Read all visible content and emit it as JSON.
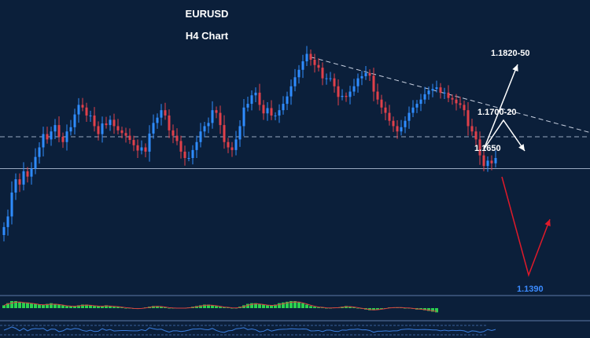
{
  "chart_data": {
    "type": "candlestick",
    "title": "EURUSD",
    "subtitle": "H4 Chart",
    "ylim": [
      1.136,
      1.19
    ],
    "colors": {
      "background": "#0b1f3a",
      "bull": "#2f8cff",
      "bear": "#e0404a",
      "annotation_white": "#ffffff",
      "annotation_red": "#e01a2a",
      "target_text": "#3b8bff",
      "macd_hist": "#2bd14f",
      "macd_signal": "#d94040"
    },
    "levels": [
      {
        "label": "1.1820-50",
        "value": 1.1835,
        "kind": "resistance"
      },
      {
        "label": "1.1700-20",
        "value": 1.171,
        "kind": "resistance"
      },
      {
        "label": "1.1650",
        "value": 1.165,
        "kind": "resistance"
      },
      {
        "label": "1.1390",
        "value": 1.139,
        "kind": "target"
      }
    ],
    "horizontal_lines": [
      {
        "value": 1.165,
        "style": "dashed"
      },
      {
        "value": 1.159,
        "style": "solid"
      }
    ],
    "trendline": {
      "style": "dashed",
      "from": {
        "bar": 78,
        "price": 1.18
      },
      "to": {
        "bar": 148,
        "price": 1.166
      }
    },
    "closes": [
      1.148,
      1.15,
      1.1545,
      1.157,
      1.156,
      1.1585,
      1.1575,
      1.159,
      1.1612,
      1.163,
      1.1655,
      1.1645,
      1.166,
      1.1672,
      1.165,
      1.164,
      1.166,
      1.1668,
      1.1692,
      1.171,
      1.1705,
      1.169,
      1.169,
      1.167,
      1.1655,
      1.1675,
      1.1672,
      1.1682,
      1.167,
      1.1662,
      1.1657,
      1.1652,
      1.1644,
      1.1634,
      1.1624,
      1.163,
      1.1622,
      1.1656,
      1.1676,
      1.1686,
      1.17,
      1.169,
      1.1662,
      1.1652,
      1.1642,
      1.1622,
      1.161,
      1.161,
      1.1625,
      1.164,
      1.166,
      1.167,
      1.1676,
      1.17,
      1.1695,
      1.1672,
      1.164,
      1.163,
      1.1625,
      1.1645,
      1.167,
      1.1705,
      1.1712,
      1.1728,
      1.1733,
      1.171,
      1.1694,
      1.1704,
      1.169,
      1.169,
      1.17,
      1.1712,
      1.1726,
      1.1745,
      1.1762,
      1.1776,
      1.1792,
      1.1806,
      1.1795,
      1.1785,
      1.178,
      1.176,
      1.176,
      1.176,
      1.1745,
      1.1725,
      1.1727,
      1.1725,
      1.1735,
      1.1745,
      1.176,
      1.1764,
      1.177,
      1.1765,
      1.1735,
      1.172,
      1.1705,
      1.1695,
      1.168,
      1.167,
      1.166,
      1.1668,
      1.168,
      1.1695,
      1.1705,
      1.1712,
      1.172,
      1.173,
      1.1737,
      1.174,
      1.1743,
      1.1733,
      1.1733,
      1.1723,
      1.172,
      1.1713,
      1.171,
      1.17,
      1.167,
      1.166,
      1.1645,
      1.1615,
      1.1595,
      1.1605,
      1.16,
      1.161
    ],
    "macd": [
      0.4,
      0.7,
      1.0,
      1.0,
      0.9,
      0.8,
      0.8,
      0.7,
      0.6,
      0.5,
      0.5,
      0.6,
      0.7,
      0.6,
      0.5,
      0.4,
      0.3,
      0.3,
      0.3,
      0.4,
      0.5,
      0.5,
      0.4,
      0.3,
      0.3,
      0.3,
      0.4,
      0.3,
      0.2,
      0.2,
      0.1,
      0.0,
      0.0,
      -0.1,
      -0.1,
      0.0,
      0.1,
      0.2,
      0.3,
      0.3,
      0.2,
      0.1,
      0.0,
      0.0,
      0.0,
      0.0,
      0.0,
      0.1,
      0.2,
      0.3,
      0.4,
      0.5,
      0.5,
      0.4,
      0.3,
      0.2,
      0.1,
      0.1,
      0.0,
      0.0,
      0.2,
      0.4,
      0.6,
      0.7,
      0.7,
      0.6,
      0.5,
      0.4,
      0.4,
      0.5,
      0.7,
      0.8,
      0.9,
      1.0,
      1.0,
      0.9,
      0.7,
      0.5,
      0.3,
      0.2,
      0.1,
      0.1,
      0.0,
      0.0,
      0.1,
      0.1,
      0.2,
      0.3,
      0.2,
      0.1,
      0.0,
      -0.1,
      -0.2,
      -0.3,
      -0.3,
      -0.2,
      -0.1,
      0.0,
      0.1,
      0.1,
      0.1,
      0.1,
      0.0,
      0.0,
      -0.1,
      -0.2,
      -0.2,
      -0.3,
      -0.4,
      -0.5,
      -0.6
    ]
  }
}
